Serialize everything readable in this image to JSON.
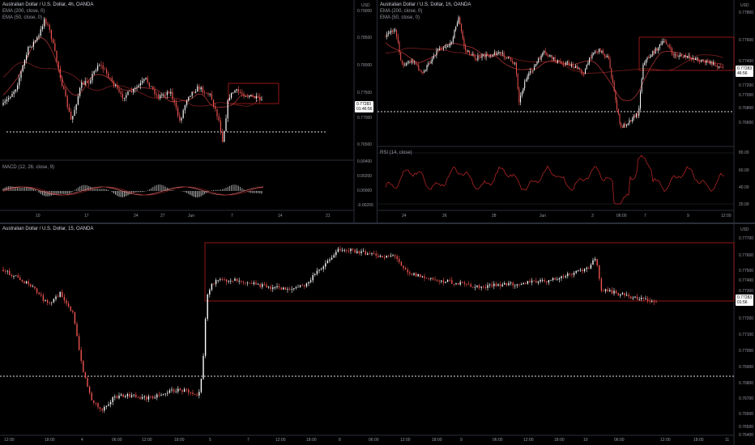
{
  "colors": {
    "up": "#ffffff",
    "down": "#ef5350",
    "ema": "#7b1e1e",
    "hline": "#e0e0e0",
    "rect": "#b71c1c",
    "rsi": "#c62828",
    "macd": "#e57373"
  },
  "top_left": {
    "title": "Australian Dollar / U.S. Dollar, 4h, OANDA",
    "ema200": "EMA (200, close, 0)",
    "ema50": "EMA (50, close, 0)",
    "currency": "USD",
    "price_ticks": [
      "0.79000",
      "0.78500",
      "0.78000",
      "0.77500",
      "0.77000",
      "0.76500"
    ],
    "last_price": "0.77283",
    "countdown": "01:46:56",
    "macd_title": "MACD (12, 26, close, 9)",
    "macd_ticks": [
      "0.00400",
      "0.00200",
      "0.00000",
      "-0.00200"
    ],
    "time_ticks": [
      "10",
      "17",
      "24",
      "27",
      "Jun",
      "7",
      "14",
      "21"
    ]
  },
  "top_right": {
    "title": "Australian Dollar / U.S. Dollar, 1h, OANDA",
    "ema200": "EMA (200, close, 0)",
    "ema50": "EMA (50, close, 0)",
    "currency": "USD",
    "price_ticks": [
      "0.77800",
      "0.77600",
      "0.77400",
      "0.77200",
      "0.77000",
      "0.76800",
      "0.76600"
    ],
    "last_price": "0.77283",
    "countdown": "46:56",
    "rsi_title": "RSI (14, close)",
    "rsi_ticks": [
      "80.00",
      "60.00",
      "40.00",
      "20.00"
    ],
    "time_ticks": [
      "24",
      "26",
      "28",
      "Jun",
      "3",
      "06:00",
      "7",
      "9",
      "12:00"
    ]
  },
  "bottom": {
    "title": "Australian Dollar / U.S. Dollar, 15, OANDA",
    "currency": "USD",
    "price_ticks": [
      "0.77700",
      "0.77600",
      "0.77500",
      "0.77400",
      "0.77300",
      "0.77200",
      "0.77100",
      "0.77000",
      "0.76900",
      "0.76800",
      "0.76700",
      "0.76600",
      "0.76500",
      "0.76400"
    ],
    "last_price": "0.77283",
    "countdown": "01:56",
    "time_ticks": [
      "12:00",
      "18:00",
      "4",
      "06:00",
      "12:00",
      "18:00",
      "5",
      "7",
      "12:00",
      "18:00",
      "8",
      "06:00",
      "12:00",
      "18:00",
      "9",
      "06:00",
      "12:00",
      "18:00",
      "10",
      "06:00",
      "12:00",
      "18:00",
      "11"
    ]
  }
}
